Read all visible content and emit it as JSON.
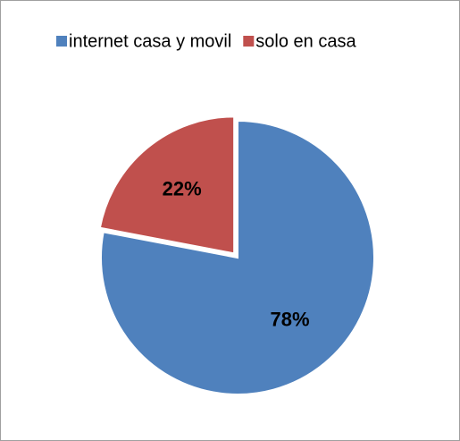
{
  "chart_data": {
    "type": "pie",
    "categories": [
      "internet casa y movil",
      "solo en casa"
    ],
    "values": [
      78,
      22
    ],
    "value_labels": [
      "78%",
      "22%"
    ],
    "colors": [
      "#4f81bd",
      "#c0504d"
    ],
    "exploded": [
      false,
      true
    ],
    "legend": "top"
  }
}
